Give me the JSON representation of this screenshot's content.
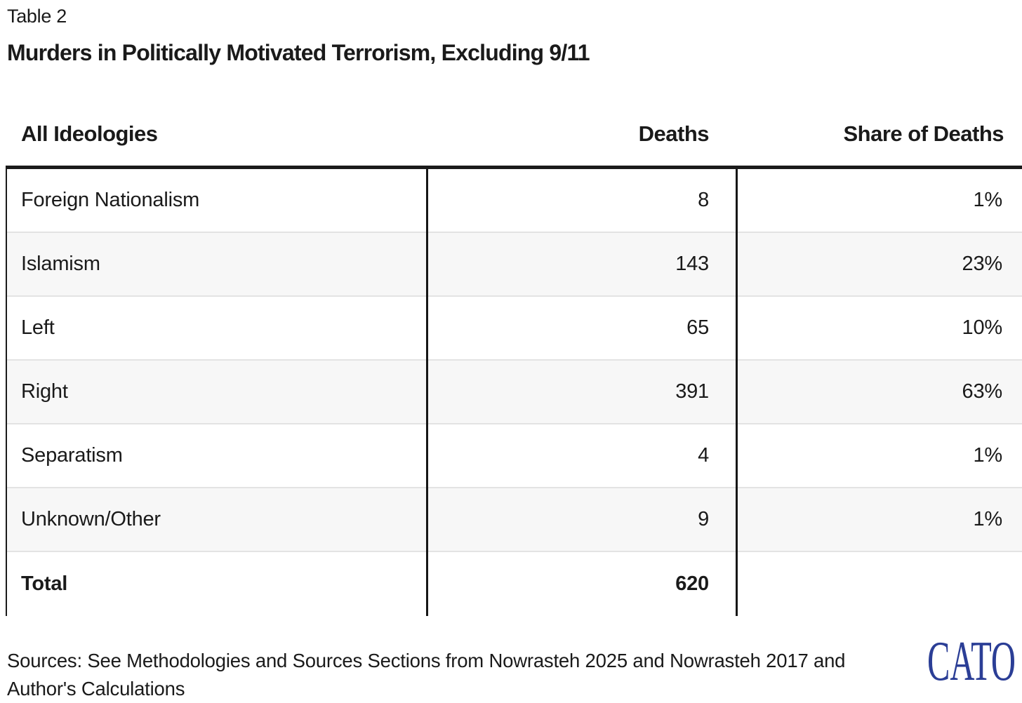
{
  "page": {
    "table_label": "Table 2",
    "title": "Murders in Politically Motivated Terrorism, Excluding 9/11"
  },
  "chart_data": {
    "type": "table",
    "title": "Murders in Politically Motivated Terrorism, Excluding 9/11",
    "columns": [
      "All Ideologies",
      "Deaths",
      "Share of Deaths"
    ],
    "rows": [
      [
        "Foreign Nationalism",
        8,
        "1%"
      ],
      [
        "Islamism",
        143,
        "23%"
      ],
      [
        "Left",
        65,
        "10%"
      ],
      [
        "Right",
        391,
        "63%"
      ],
      [
        "Separatism",
        4,
        "1%"
      ],
      [
        "Unknown/Other",
        9,
        "1%"
      ]
    ],
    "total_row": [
      "Total",
      620,
      ""
    ]
  },
  "header": {
    "col_ideologies": "All Ideologies",
    "col_deaths": "Deaths",
    "col_share": "Share of Deaths"
  },
  "rows": [
    {
      "ideology": "Foreign Nationalism",
      "deaths": "8",
      "share": "1%"
    },
    {
      "ideology": "Islamism",
      "deaths": "143",
      "share": "23%"
    },
    {
      "ideology": "Left",
      "deaths": "65",
      "share": "10%"
    },
    {
      "ideology": "Right",
      "deaths": "391",
      "share": "63%"
    },
    {
      "ideology": "Separatism",
      "deaths": "4",
      "share": "1%"
    },
    {
      "ideology": "Unknown/Other",
      "deaths": "9",
      "share": "1%"
    }
  ],
  "total": {
    "ideology": "Total",
    "deaths": "620",
    "share": ""
  },
  "footer": {
    "sources_line1": "Sources: See Methodologies and Sources Sections from Nowrasteh 2025 and Nowrasteh 2017 and",
    "sources_line2": "Author's Calculations",
    "logo_text": "CATO"
  },
  "colors": {
    "text": "#1a1a1a",
    "rule": "#1a1a1a",
    "row_alt": "#f7f7f7",
    "row_separator": "#e3e3e3",
    "logo_blue": "#2B3E96"
  }
}
